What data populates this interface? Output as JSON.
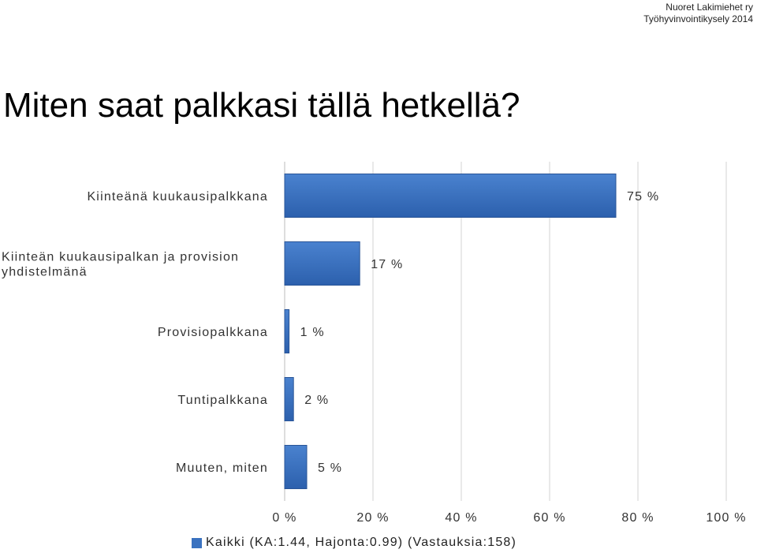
{
  "header": {
    "org": "Nuoret Lakimiehet ry",
    "survey": "Työhyvinvointikysely 2014"
  },
  "title": "Miten saat palkkasi tällä hetkellä?",
  "chart_data": {
    "type": "bar",
    "orientation": "horizontal",
    "categories": [
      [
        "Kiinteänä kuukausipalkkana"
      ],
      [
        "Kiinteän kuukausipalkan ja provision",
        "yhdistelmänä"
      ],
      [
        "Provisiopalkkana"
      ],
      [
        "Tuntipalkkana"
      ],
      [
        "Muuten, miten"
      ]
    ],
    "series": [
      {
        "name": "Kaikki (KA:1.44, Hajonta:0.99) (Vastauksia:158)",
        "values": [
          75,
          17,
          1,
          2,
          5
        ],
        "labels": [
          "75 %",
          "17 %",
          "1 %",
          "2 %",
          "5 %"
        ]
      }
    ],
    "xlim": [
      0,
      100
    ],
    "xticks": [
      0,
      20,
      40,
      60,
      80,
      100
    ],
    "xtick_labels": [
      "0 %",
      "20 %",
      "40 %",
      "60 %",
      "80 %",
      "100 %"
    ],
    "grid": true,
    "legend_position": "bottom",
    "colors": {
      "bar": "#3a72c0",
      "bar_dark": "#2a5597",
      "grid": "#d3d3d3"
    }
  }
}
